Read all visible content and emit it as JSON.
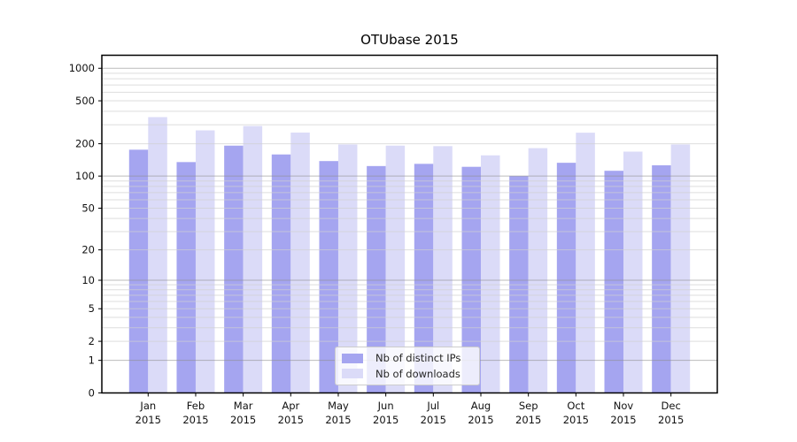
{
  "figure": {
    "background": "#ffffff"
  },
  "chart_data": {
    "type": "bar",
    "title": "OTUbase 2015",
    "categories": [
      "Jan",
      "Feb",
      "Mar",
      "Apr",
      "May",
      "Jun",
      "Jul",
      "Aug",
      "Sep",
      "Oct",
      "Nov",
      "Dec"
    ],
    "x_tick_labels": [
      [
        "Jan",
        "2015"
      ],
      [
        "Feb",
        "2015"
      ],
      [
        "Mar",
        "2015"
      ],
      [
        "Apr",
        "2015"
      ],
      [
        "May",
        "2015"
      ],
      [
        "Jun",
        "2015"
      ],
      [
        "Jul",
        "2015"
      ],
      [
        "Aug",
        "2015"
      ],
      [
        "Sep",
        "2015"
      ],
      [
        "Oct",
        "2015"
      ],
      [
        "Nov",
        "2015"
      ],
      [
        "Dec",
        "2015"
      ]
    ],
    "series": [
      {
        "name": "Nb of distinct IPs",
        "color": "#a5a5f0",
        "values": [
          176,
          135,
          192,
          159,
          138,
          124,
          130,
          122,
          100,
          133,
          112,
          126
        ]
      },
      {
        "name": "Nb of downloads",
        "color": "#dbdbf8",
        "values": [
          353,
          266,
          292,
          254,
          197,
          192,
          190,
          156,
          182,
          253,
          169,
          197
        ]
      }
    ],
    "yscale": "log1p",
    "yticks": [
      1000,
      500,
      200,
      100,
      50,
      20,
      10,
      5,
      2,
      1,
      0
    ],
    "ylim": [
      0,
      1340
    ],
    "grid": "on",
    "grid_major_values": [
      1,
      10,
      100,
      1000
    ],
    "legend_position": "bottom-center",
    "colors": {
      "axis_frame": "#000000",
      "grid_major": "#8e8e8e",
      "grid_minor": "#d0d0d0",
      "tick_text": "#111111"
    }
  }
}
